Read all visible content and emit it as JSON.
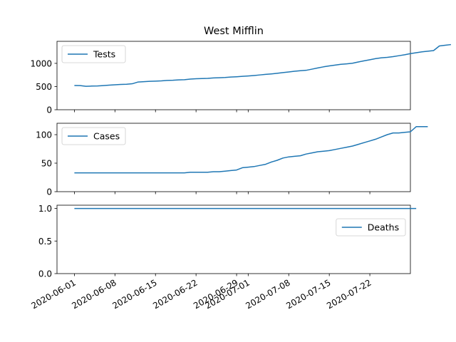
{
  "chart_data": {
    "type": "line",
    "title": "West Mifflin",
    "line_color": "#1f77b4",
    "x_ticks": [
      "2020-06-01",
      "2020-06-08",
      "2020-06-15",
      "2020-06-22",
      "2020-06-29",
      "2020-07-01",
      "2020-07-08",
      "2020-07-15",
      "2020-07-22"
    ],
    "x_range": [
      "2020-05-29",
      "2020-07-29"
    ],
    "panels": [
      {
        "series": {
          "name": "Tests",
          "x_start": "2020-06-01",
          "values": [
            523,
            521,
            505,
            510,
            512,
            520,
            530,
            538,
            545,
            550,
            560,
            598,
            605,
            612,
            617,
            622,
            632,
            636,
            644,
            648,
            660,
            668,
            672,
            676,
            685,
            690,
            695,
            704,
            711,
            720,
            728,
            738,
            750,
            762,
            772,
            785,
            800,
            815,
            830,
            842,
            850,
            875,
            900,
            925,
            945,
            962,
            980,
            990,
            1002,
            1030,
            1055,
            1078,
            1102,
            1120,
            1130,
            1145,
            1165,
            1185,
            1210,
            1230,
            1248,
            1262,
            1275,
            1375,
            1390,
            1405
          ]
        },
        "y_ticks": [
          0,
          500,
          1000
        ],
        "ylim": [
          0,
          1475
        ],
        "legend_loc": "upper-left"
      },
      {
        "series": {
          "name": "Cases",
          "x_start": "2020-06-01",
          "values": [
            33,
            33,
            33,
            33,
            33,
            33,
            33,
            33,
            33,
            33,
            33,
            33,
            33,
            33,
            33,
            33,
            33,
            33,
            33,
            33,
            34,
            34,
            34,
            34,
            35,
            35,
            36,
            37,
            38,
            42,
            43,
            44,
            46,
            48,
            52,
            55,
            59,
            61,
            62,
            63,
            66,
            68,
            70,
            71,
            72,
            74,
            76,
            78,
            80,
            83,
            86,
            89,
            92,
            96,
            100,
            103,
            103,
            104,
            105,
            114,
            114,
            114
          ]
        },
        "y_ticks": [
          0,
          50,
          100
        ],
        "ylim": [
          0,
          120
        ],
        "legend_loc": "upper-left"
      },
      {
        "series": {
          "name": "Deaths",
          "x_start": "2020-06-01",
          "values": [
            1,
            1,
            1,
            1,
            1,
            1,
            1,
            1,
            1,
            1,
            1,
            1,
            1,
            1,
            1,
            1,
            1,
            1,
            1,
            1,
            1,
            1,
            1,
            1,
            1,
            1,
            1,
            1,
            1,
            1,
            1,
            1,
            1,
            1,
            1,
            1,
            1,
            1,
            1,
            1,
            1,
            1,
            1,
            1,
            1,
            1,
            1,
            1,
            1,
            1,
            1,
            1,
            1,
            1,
            1,
            1,
            1,
            1,
            1,
            1
          ]
        },
        "y_ticks": [
          0.0,
          0.5,
          1.0
        ],
        "y_tick_labels": [
          "0.0",
          "0.5",
          "1.0"
        ],
        "ylim": [
          0,
          1.05
        ],
        "legend_loc": "right"
      }
    ],
    "grid": false
  }
}
